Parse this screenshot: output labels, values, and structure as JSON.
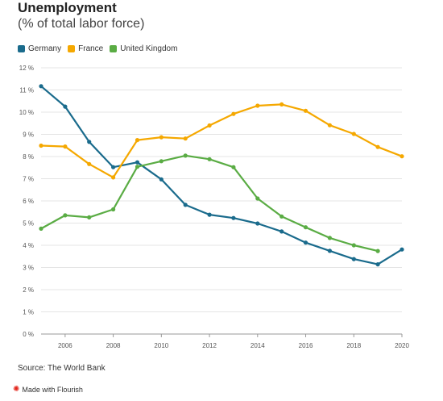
{
  "chart_data": {
    "type": "line",
    "title": "Unemployment",
    "subtitle": "(% of total labor force)",
    "x": [
      2005,
      2006,
      2007,
      2008,
      2009,
      2010,
      2011,
      2012,
      2013,
      2014,
      2015,
      2016,
      2017,
      2018,
      2019,
      2020
    ],
    "series": [
      {
        "name": "Germany",
        "color": "#1a6b8c",
        "values": [
          11.17,
          10.25,
          8.66,
          7.52,
          7.74,
          6.97,
          5.82,
          5.38,
          5.23,
          4.98,
          4.62,
          4.12,
          3.75,
          3.38,
          3.14,
          3.81
        ]
      },
      {
        "name": "France",
        "color": "#f5a800",
        "values": [
          8.49,
          8.45,
          7.66,
          7.06,
          8.74,
          8.87,
          8.81,
          9.4,
          9.92,
          10.29,
          10.35,
          10.06,
          9.41,
          9.02,
          8.43,
          8.01
        ]
      },
      {
        "name": "United Kingdom",
        "color": "#5aac44",
        "values": [
          4.75,
          5.35,
          5.26,
          5.62,
          7.54,
          7.79,
          8.04,
          7.88,
          7.52,
          6.11,
          5.3,
          4.81,
          4.33,
          4.0,
          3.74,
          null
        ]
      }
    ],
    "xticks": [
      "2006",
      "2008",
      "2010",
      "2012",
      "2014",
      "2016",
      "2018",
      "2020"
    ],
    "yticks": [
      "0 %",
      "1 %",
      "2 %",
      "3 %",
      "4 %",
      "5 %",
      "6 %",
      "7 %",
      "8 %",
      "9 %",
      "10 %",
      "11 %",
      "12 %"
    ],
    "xlim": [
      2005,
      2020
    ],
    "ylim": [
      0,
      12
    ],
    "grid": true,
    "legend_position": "top-left",
    "source": "Source: The World Bank"
  },
  "footer": {
    "credit": "Made with Flourish"
  }
}
